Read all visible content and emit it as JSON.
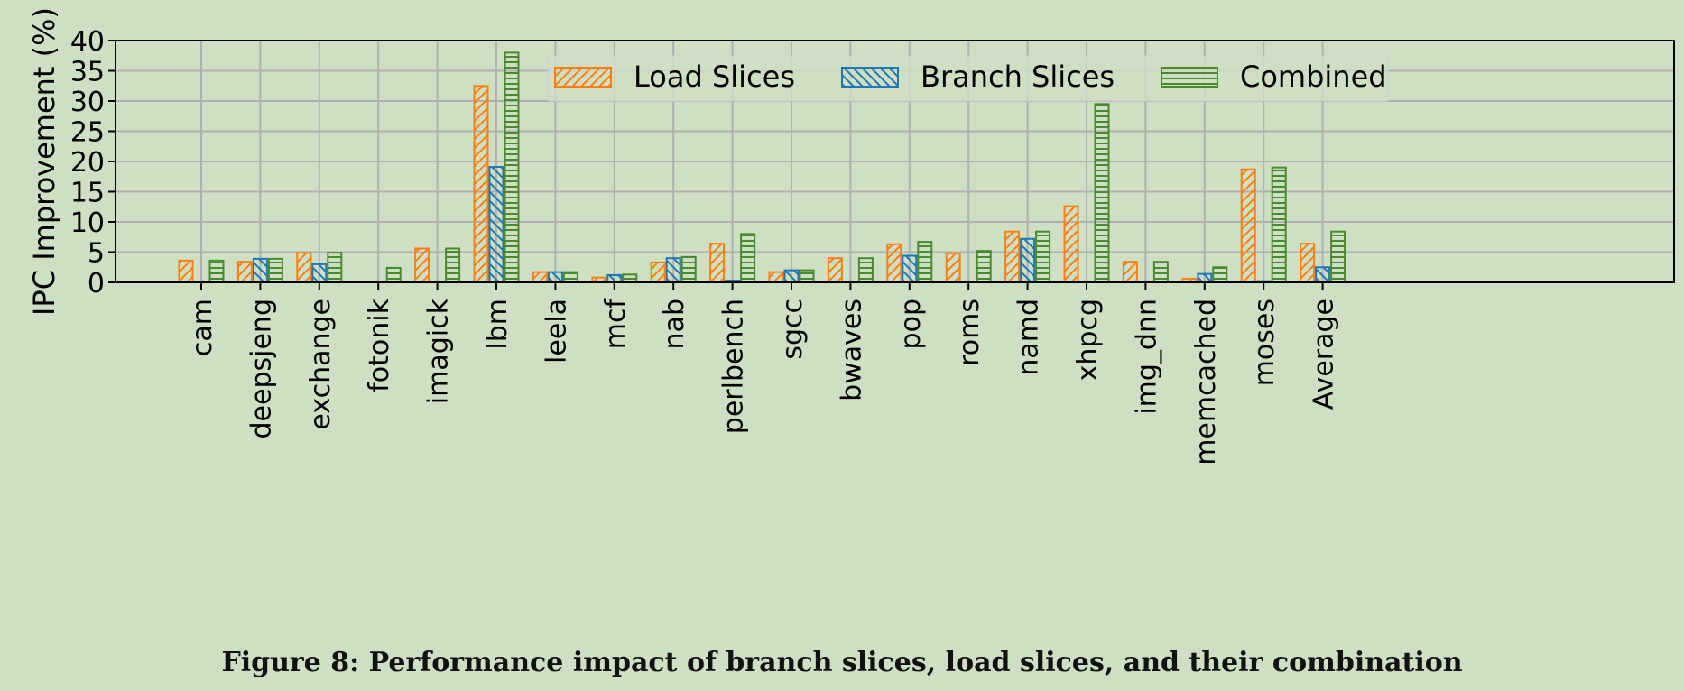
{
  "chart_data": {
    "type": "bar",
    "title": "",
    "xlabel": "",
    "ylabel": "IPC Improvement (%)",
    "ylim": [
      0,
      40
    ],
    "yticks": [
      0,
      5,
      10,
      15,
      20,
      25,
      30,
      35,
      40
    ],
    "grid": true,
    "legend_position": "top-right",
    "categories": [
      "cam",
      "deepsjeng",
      "exchange",
      "fotonik",
      "imagick",
      "lbm",
      "leela",
      "mcf",
      "nab",
      "perlbench",
      "sgcc",
      "bwaves",
      "pop",
      "roms",
      "namd",
      "xhpcg",
      "img_dnn",
      "memcached",
      "moses",
      "Average"
    ],
    "series": [
      {
        "name": "Load Slices",
        "color": "#ff7f0e",
        "values": [
          3.6,
          3.4,
          4.9,
          0,
          5.6,
          32.5,
          1.7,
          0.8,
          3.3,
          6.4,
          1.7,
          4.0,
          6.3,
          4.8,
          8.4,
          12.6,
          3.4,
          0.6,
          18.7,
          6.4
        ]
      },
      {
        "name": "Branch Slices",
        "color": "#1f77b4",
        "values": [
          0,
          3.9,
          3.0,
          0,
          0,
          19.1,
          1.7,
          1.2,
          4.0,
          0.3,
          2.0,
          0,
          4.4,
          0,
          7.2,
          0,
          0,
          1.4,
          0.2,
          2.5
        ]
      },
      {
        "name": "Combined",
        "color": "#4a8a2e",
        "values": [
          3.6,
          3.9,
          4.9,
          2.4,
          5.6,
          38.0,
          1.7,
          1.3,
          4.2,
          8.0,
          2.0,
          4.0,
          6.7,
          5.2,
          8.4,
          29.5,
          3.4,
          2.5,
          19.0,
          8.4
        ]
      }
    ],
    "caption": "Figure 8: Performance impact of branch slices, load slices, and their combination"
  }
}
